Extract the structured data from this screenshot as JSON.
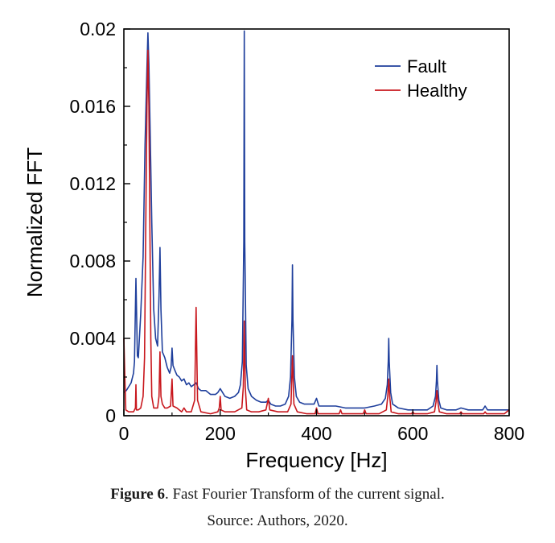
{
  "chart_data": {
    "type": "line",
    "xlabel": "Frequency [Hz]",
    "ylabel": "Normalized FFT",
    "xlim": [
      0,
      800
    ],
    "ylim": [
      0,
      0.02
    ],
    "xticks": [
      0,
      200,
      400,
      600,
      800
    ],
    "yticks": [
      0,
      0.004,
      0.008,
      0.012,
      0.016,
      0.02
    ],
    "ytick_labels": [
      "0",
      "0.004",
      "0.008",
      "0.012",
      "0.016",
      "0.02"
    ],
    "grid": false,
    "legend_position": "top-right",
    "series": [
      {
        "name": "Fault",
        "color": "#1f3f9c",
        "points": [
          [
            0,
            0.0012
          ],
          [
            5,
            0.0013
          ],
          [
            10,
            0.0015
          ],
          [
            15,
            0.0017
          ],
          [
            20,
            0.0022
          ],
          [
            22,
            0.0028
          ],
          [
            25,
            0.0071
          ],
          [
            28,
            0.0031
          ],
          [
            30,
            0.003
          ],
          [
            35,
            0.0053
          ],
          [
            40,
            0.0082
          ],
          [
            44,
            0.014
          ],
          [
            48,
            0.018
          ],
          [
            50,
            0.0198
          ],
          [
            52,
            0.0182
          ],
          [
            55,
            0.0142
          ],
          [
            58,
            0.01
          ],
          [
            62,
            0.0055
          ],
          [
            66,
            0.004
          ],
          [
            70,
            0.0036
          ],
          [
            73,
            0.0062
          ],
          [
            75,
            0.0087
          ],
          [
            77,
            0.0055
          ],
          [
            80,
            0.0033
          ],
          [
            85,
            0.003
          ],
          [
            90,
            0.0025
          ],
          [
            95,
            0.0022
          ],
          [
            98,
            0.0025
          ],
          [
            100,
            0.0035
          ],
          [
            102,
            0.0026
          ],
          [
            105,
            0.0024
          ],
          [
            110,
            0.0021
          ],
          [
            115,
            0.002
          ],
          [
            120,
            0.0018
          ],
          [
            125,
            0.0019
          ],
          [
            130,
            0.0016
          ],
          [
            135,
            0.0017
          ],
          [
            140,
            0.0015
          ],
          [
            145,
            0.0016
          ],
          [
            150,
            0.0017
          ],
          [
            155,
            0.0014
          ],
          [
            160,
            0.0013
          ],
          [
            170,
            0.0013
          ],
          [
            180,
            0.0011
          ],
          [
            190,
            0.0011
          ],
          [
            195,
            0.0012
          ],
          [
            200,
            0.0014
          ],
          [
            205,
            0.0012
          ],
          [
            210,
            0.001
          ],
          [
            220,
            0.0009
          ],
          [
            230,
            0.001
          ],
          [
            238,
            0.0012
          ],
          [
            242,
            0.0016
          ],
          [
            246,
            0.0028
          ],
          [
            249,
            0.009
          ],
          [
            250,
            0.0199
          ],
          [
            251,
            0.009
          ],
          [
            254,
            0.0026
          ],
          [
            258,
            0.0014
          ],
          [
            265,
            0.001
          ],
          [
            275,
            0.0008
          ],
          [
            285,
            0.0007
          ],
          [
            295,
            0.0007
          ],
          [
            300,
            0.0008
          ],
          [
            305,
            0.0006
          ],
          [
            315,
            0.0005
          ],
          [
            325,
            0.0005
          ],
          [
            335,
            0.0006
          ],
          [
            342,
            0.001
          ],
          [
            346,
            0.002
          ],
          [
            349,
            0.005
          ],
          [
            350,
            0.0078
          ],
          [
            351,
            0.005
          ],
          [
            354,
            0.002
          ],
          [
            358,
            0.001
          ],
          [
            365,
            0.0007
          ],
          [
            375,
            0.0006
          ],
          [
            385,
            0.0006
          ],
          [
            395,
            0.0006
          ],
          [
            400,
            0.0009
          ],
          [
            405,
            0.0005
          ],
          [
            420,
            0.0005
          ],
          [
            440,
            0.0005
          ],
          [
            460,
            0.0004
          ],
          [
            480,
            0.0004
          ],
          [
            500,
            0.0004
          ],
          [
            520,
            0.0005
          ],
          [
            535,
            0.0006
          ],
          [
            543,
            0.0009
          ],
          [
            547,
            0.0016
          ],
          [
            549,
            0.0028
          ],
          [
            550,
            0.004
          ],
          [
            551,
            0.0028
          ],
          [
            554,
            0.0012
          ],
          [
            558,
            0.0006
          ],
          [
            570,
            0.0004
          ],
          [
            590,
            0.0003
          ],
          [
            600,
            0.0003
          ],
          [
            615,
            0.0003
          ],
          [
            630,
            0.0003
          ],
          [
            642,
            0.0005
          ],
          [
            647,
            0.001
          ],
          [
            649,
            0.0018
          ],
          [
            650,
            0.0026
          ],
          [
            651,
            0.0018
          ],
          [
            654,
            0.0008
          ],
          [
            658,
            0.0004
          ],
          [
            670,
            0.0003
          ],
          [
            690,
            0.0003
          ],
          [
            700,
            0.0004
          ],
          [
            715,
            0.0003
          ],
          [
            730,
            0.0003
          ],
          [
            745,
            0.0003
          ],
          [
            750,
            0.0005
          ],
          [
            755,
            0.0003
          ],
          [
            770,
            0.0003
          ],
          [
            785,
            0.0003
          ],
          [
            800,
            0.0003
          ]
        ]
      },
      {
        "name": "Healthy",
        "color": "#c8171d",
        "points": [
          [
            0,
            0.004
          ],
          [
            2,
            0.002
          ],
          [
            4,
            0.0003
          ],
          [
            10,
            0.0002
          ],
          [
            20,
            0.0002
          ],
          [
            24,
            0.0004
          ],
          [
            25,
            0.0016
          ],
          [
            26,
            0.0003
          ],
          [
            30,
            0.0003
          ],
          [
            35,
            0.0004
          ],
          [
            40,
            0.001
          ],
          [
            43,
            0.003
          ],
          [
            46,
            0.011
          ],
          [
            48,
            0.016
          ],
          [
            50,
            0.0189
          ],
          [
            52,
            0.016
          ],
          [
            54,
            0.01
          ],
          [
            56,
            0.004
          ],
          [
            58,
            0.001
          ],
          [
            62,
            0.0004
          ],
          [
            70,
            0.0004
          ],
          [
            73,
            0.001
          ],
          [
            75,
            0.0033
          ],
          [
            77,
            0.001
          ],
          [
            80,
            0.0006
          ],
          [
            85,
            0.0004
          ],
          [
            90,
            0.0004
          ],
          [
            97,
            0.0005
          ],
          [
            100,
            0.0019
          ],
          [
            102,
            0.0005
          ],
          [
            110,
            0.0004
          ],
          [
            120,
            0.0002
          ],
          [
            125,
            0.0004
          ],
          [
            130,
            0.0002
          ],
          [
            140,
            0.0002
          ],
          [
            147,
            0.0008
          ],
          [
            150,
            0.0056
          ],
          [
            153,
            0.0008
          ],
          [
            160,
            0.0002
          ],
          [
            180,
            0.0001
          ],
          [
            195,
            0.0002
          ],
          [
            198,
            0.0004
          ],
          [
            200,
            0.001
          ],
          [
            202,
            0.0003
          ],
          [
            210,
            0.0002
          ],
          [
            230,
            0.0002
          ],
          [
            245,
            0.0004
          ],
          [
            248,
            0.0015
          ],
          [
            250,
            0.0049
          ],
          [
            252,
            0.0015
          ],
          [
            255,
            0.0003
          ],
          [
            265,
            0.0002
          ],
          [
            280,
            0.0002
          ],
          [
            295,
            0.0003
          ],
          [
            300,
            0.0009
          ],
          [
            303,
            0.0003
          ],
          [
            320,
            0.0002
          ],
          [
            340,
            0.0002
          ],
          [
            347,
            0.0006
          ],
          [
            350,
            0.0031
          ],
          [
            353,
            0.0006
          ],
          [
            360,
            0.0002
          ],
          [
            380,
            0.0001
          ],
          [
            397,
            0.0001
          ],
          [
            400,
            0.0004
          ],
          [
            403,
            0.0001
          ],
          [
            420,
            0.0001
          ],
          [
            447,
            0.0001
          ],
          [
            450,
            0.0003
          ],
          [
            453,
            0.0001
          ],
          [
            480,
            0.0001
          ],
          [
            497,
            0.0001
          ],
          [
            500,
            0.0003
          ],
          [
            503,
            0.0001
          ],
          [
            530,
            0.0001
          ],
          [
            545,
            0.0003
          ],
          [
            548,
            0.001
          ],
          [
            550,
            0.0019
          ],
          [
            552,
            0.001
          ],
          [
            555,
            0.0002
          ],
          [
            570,
            0.0001
          ],
          [
            597,
            0.0001
          ],
          [
            600,
            0.0002
          ],
          [
            603,
            0.0001
          ],
          [
            630,
            0.0001
          ],
          [
            645,
            0.0002
          ],
          [
            648,
            0.0007
          ],
          [
            650,
            0.0013
          ],
          [
            652,
            0.0007
          ],
          [
            655,
            0.0002
          ],
          [
            670,
            0.0001
          ],
          [
            697,
            0.0001
          ],
          [
            700,
            0.0002
          ],
          [
            703,
            0.0001
          ],
          [
            720,
            0.0001
          ],
          [
            747,
            0.0001
          ],
          [
            750,
            0.0002
          ],
          [
            753,
            0.0001
          ],
          [
            780,
            0.0001
          ],
          [
            790,
            0.0001
          ],
          [
            800,
            0.0003
          ]
        ]
      }
    ]
  },
  "caption": {
    "figure_label": "Figure 6",
    "text": ". Fast Fourier Transform of the current signal.",
    "source": "Source: Authors, 2020."
  }
}
